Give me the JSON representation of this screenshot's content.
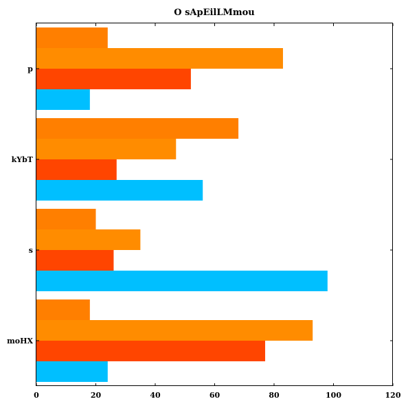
{
  "chart_data": {
    "type": "bar",
    "orientation": "horizontal",
    "title": "O sApEilLMmou",
    "xlabel": "",
    "ylabel": "",
    "categories": [
      "moHX",
      "s",
      "kYbT",
      "p"
    ],
    "xlim": [
      0,
      120
    ],
    "xticks": [
      0,
      20,
      40,
      60,
      80,
      100,
      120
    ],
    "grid": false,
    "series": [
      {
        "color": "#00bfff",
        "values": [
          24,
          98,
          56,
          18
        ]
      },
      {
        "color": "#ff4500",
        "values": [
          77,
          26,
          27,
          52
        ]
      },
      {
        "color": "#ff8c00",
        "values": [
          93,
          35,
          47,
          83
        ]
      },
      {
        "color": "#ff7f00",
        "values": [
          18,
          20,
          68,
          24
        ]
      }
    ]
  }
}
